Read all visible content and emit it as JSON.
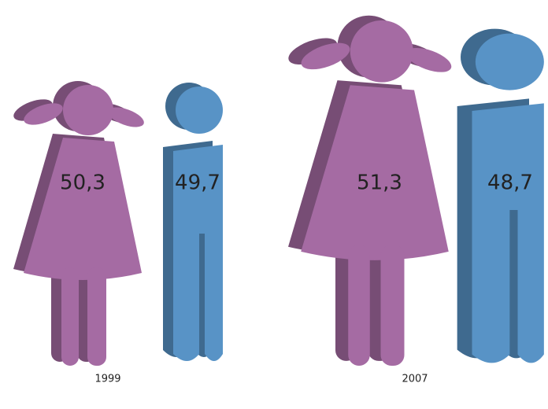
{
  "chart_data": {
    "type": "pictogram",
    "categories": [
      "1999",
      "2007"
    ],
    "series": [
      {
        "color": "#a56ba3",
        "values": [
          50.3,
          51.3
        ],
        "value_labels": [
          "50,3",
          "51,3"
        ]
      },
      {
        "color": "#5893c6",
        "values": [
          49.7,
          48.7
        ],
        "value_labels": [
          "49,7",
          "48,7"
        ]
      }
    ]
  }
}
